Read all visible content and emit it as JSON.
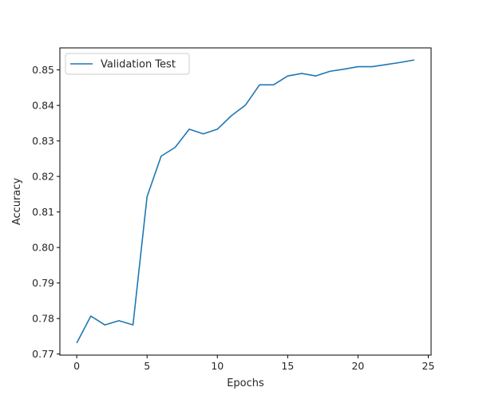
{
  "chart_data": {
    "type": "line",
    "title": "",
    "xlabel": "Epochs",
    "ylabel": "Accuracy",
    "xlim": [
      -1.2,
      25.2
    ],
    "ylim": [
      0.7697,
      0.8562
    ],
    "xticks": [
      0,
      5,
      10,
      15,
      20,
      25
    ],
    "yticks": [
      0.77,
      0.78,
      0.79,
      0.8,
      0.81,
      0.82,
      0.83,
      0.84,
      0.85
    ],
    "ytick_labels": [
      "0.77",
      "0.78",
      "0.79",
      "0.80",
      "0.81",
      "0.82",
      "0.83",
      "0.84",
      "0.85"
    ],
    "grid": false,
    "legend_position": "top-left",
    "series": [
      {
        "name": "Validation Test",
        "color": "#1f77b4",
        "x": [
          0,
          1,
          2,
          3,
          4,
          5,
          6,
          7,
          8,
          9,
          10,
          11,
          12,
          13,
          14,
          15,
          16,
          17,
          18,
          19,
          20,
          21,
          22,
          23,
          24
        ],
        "y": [
          0.7731,
          0.7807,
          0.7782,
          0.7794,
          0.7782,
          0.8143,
          0.8257,
          0.8282,
          0.8333,
          0.832,
          0.8333,
          0.8371,
          0.8401,
          0.8458,
          0.8458,
          0.8483,
          0.849,
          0.8483,
          0.8496,
          0.8502,
          0.8509,
          0.8509,
          0.8515,
          0.8521,
          0.8528
        ]
      }
    ]
  }
}
